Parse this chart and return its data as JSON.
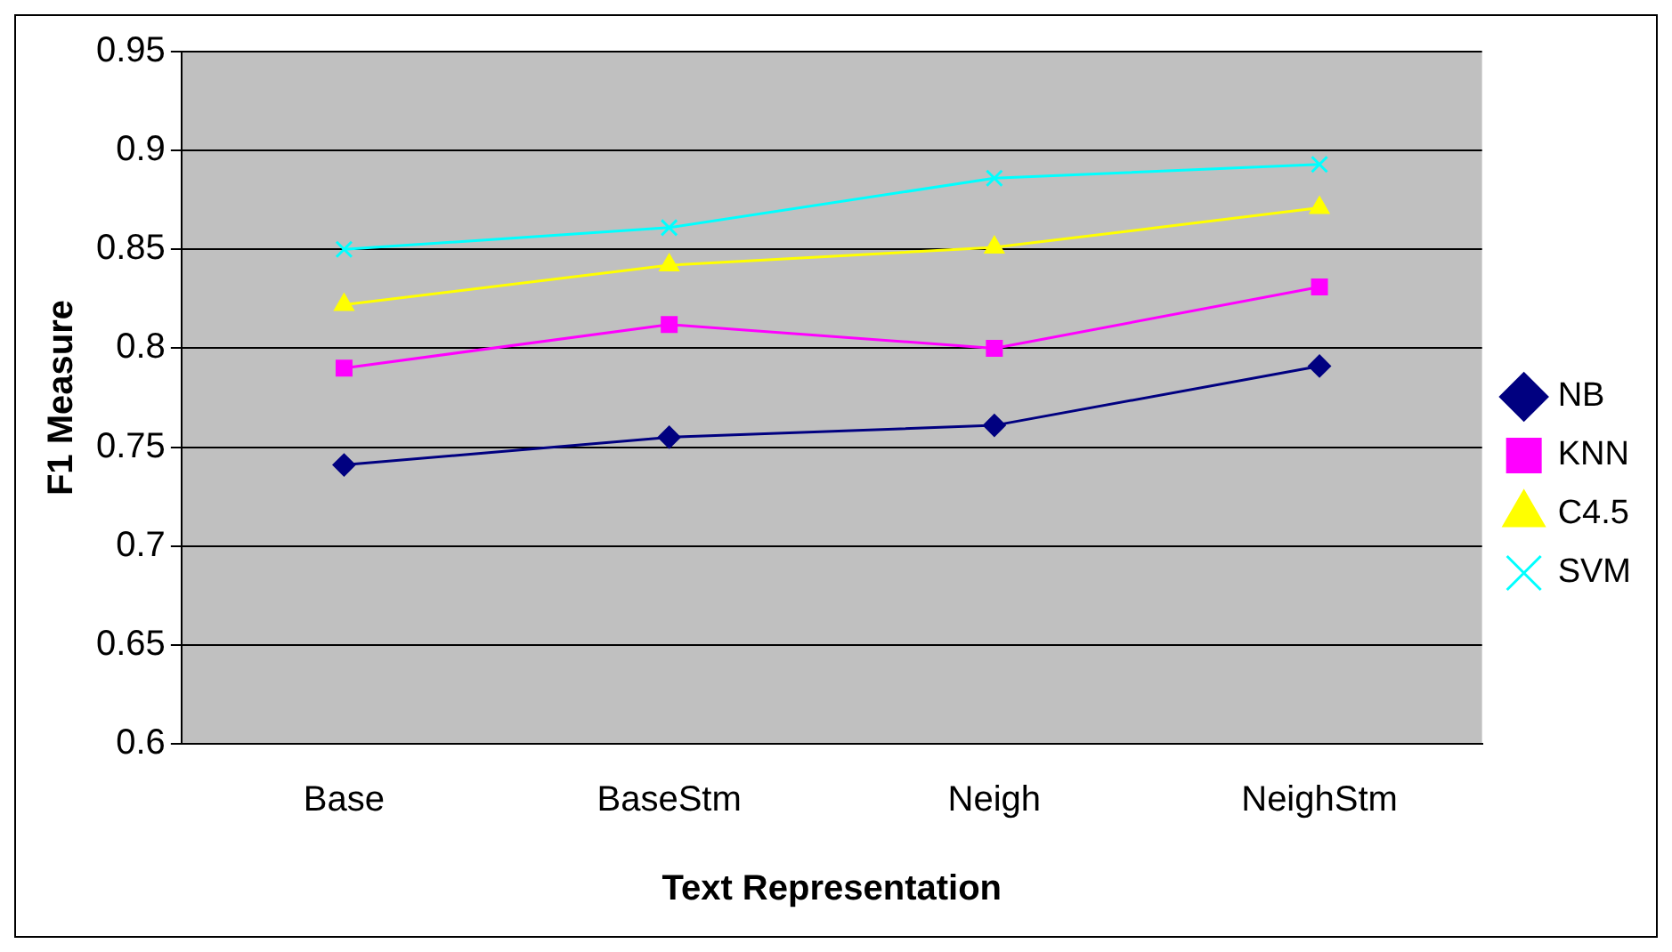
{
  "chart_data": {
    "type": "line",
    "xlabel": "Text Representation",
    "ylabel": "F1 Measure",
    "categories": [
      "Base",
      "BaseStm",
      "Neigh",
      "NeighStm"
    ],
    "series": [
      {
        "name": "NB",
        "color": "#000080",
        "marker": "diamond",
        "values": [
          0.741,
          0.755,
          0.761,
          0.791
        ]
      },
      {
        "name": "KNN",
        "color": "#ff00ff",
        "marker": "square",
        "values": [
          0.79,
          0.812,
          0.8,
          0.831
        ]
      },
      {
        "name": "C4.5",
        "color": "#ffff00",
        "marker": "triangle",
        "values": [
          0.822,
          0.842,
          0.851,
          0.871
        ]
      },
      {
        "name": "SVM",
        "color": "#00ffff",
        "marker": "cross",
        "values": [
          0.85,
          0.861,
          0.886,
          0.893
        ]
      }
    ],
    "ylim": [
      0.6,
      0.95
    ],
    "yticks": [
      0.6,
      0.65,
      0.7,
      0.75,
      0.8,
      0.85,
      0.9,
      0.95
    ],
    "grid": "y",
    "legend": "right"
  }
}
